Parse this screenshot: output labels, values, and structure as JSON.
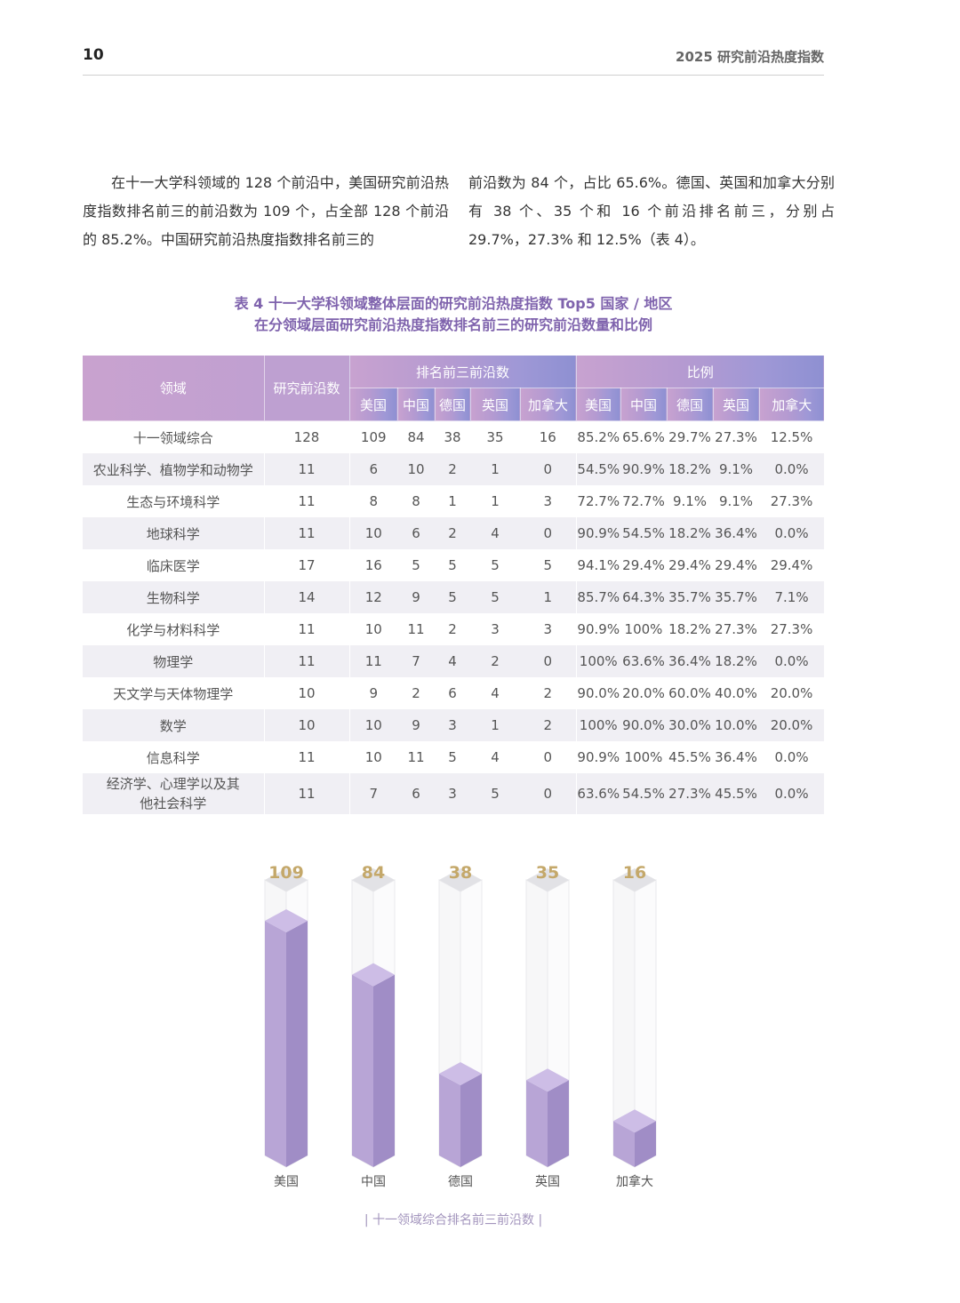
{
  "header": {
    "page_number": "10",
    "running_title": "2025 研究前沿热度指数"
  },
  "paragraph": {
    "left": "在十一大学科领域的 128 个前沿中，美国研究前沿热度指数排名前三的前沿数为 109 个，占全部 128 个前沿的 85.2%。中国研究前沿热度指数排名前三的",
    "right": "前沿数为 84 个，占比 65.6%。德国、英国和加拿大分别有 38 个、35 个和 16 个前沿排名前三，分别占 29.7%，27.3% 和 12.5%（表 4）。"
  },
  "table": {
    "caption_line1": "表 4 十一大学科领域整体层面的研究前沿热度指数 Top5 国家 / 地区",
    "caption_line2": "在分领域层面研究前沿热度指数排名前三的研究前沿数量和比例",
    "headers": {
      "field": "领域",
      "total": "研究前沿数",
      "top3_group": "排名前三前沿数",
      "ratio_group": "比例",
      "countries": [
        "美国",
        "中国",
        "德国",
        "英国",
        "加拿大"
      ]
    },
    "rows": [
      {
        "field": "十一领域综合",
        "total": "128",
        "counts": [
          "109",
          "84",
          "38",
          "35",
          "16"
        ],
        "ratios": [
          "85.2%",
          "65.6%",
          "29.7%",
          "27.3%",
          "12.5%"
        ]
      },
      {
        "field": "农业科学、植物学和动物学",
        "total": "11",
        "counts": [
          "6",
          "10",
          "2",
          "1",
          "0"
        ],
        "ratios": [
          "54.5%",
          "90.9%",
          "18.2%",
          "9.1%",
          "0.0%"
        ]
      },
      {
        "field": "生态与环境科学",
        "total": "11",
        "counts": [
          "8",
          "8",
          "1",
          "1",
          "3"
        ],
        "ratios": [
          "72.7%",
          "72.7%",
          "9.1%",
          "9.1%",
          "27.3%"
        ]
      },
      {
        "field": "地球科学",
        "total": "11",
        "counts": [
          "10",
          "6",
          "2",
          "4",
          "0"
        ],
        "ratios": [
          "90.9%",
          "54.5%",
          "18.2%",
          "36.4%",
          "0.0%"
        ]
      },
      {
        "field": "临床医学",
        "total": "17",
        "counts": [
          "16",
          "5",
          "5",
          "5",
          "5"
        ],
        "ratios": [
          "94.1%",
          "29.4%",
          "29.4%",
          "29.4%",
          "29.4%"
        ]
      },
      {
        "field": "生物科学",
        "total": "14",
        "counts": [
          "12",
          "9",
          "5",
          "5",
          "1"
        ],
        "ratios": [
          "85.7%",
          "64.3%",
          "35.7%",
          "35.7%",
          "7.1%"
        ]
      },
      {
        "field": "化学与材料科学",
        "total": "11",
        "counts": [
          "10",
          "11",
          "2",
          "3",
          "3"
        ],
        "ratios": [
          "90.9%",
          "100%",
          "18.2%",
          "27.3%",
          "27.3%"
        ]
      },
      {
        "field": "物理学",
        "total": "11",
        "counts": [
          "11",
          "7",
          "4",
          "2",
          "0"
        ],
        "ratios": [
          "100%",
          "63.6%",
          "36.4%",
          "18.2%",
          "0.0%"
        ]
      },
      {
        "field": "天文学与天体物理学",
        "total": "10",
        "counts": [
          "9",
          "2",
          "6",
          "4",
          "2"
        ],
        "ratios": [
          "90.0%",
          "20.0%",
          "60.0%",
          "40.0%",
          "20.0%"
        ]
      },
      {
        "field": "数学",
        "total": "10",
        "counts": [
          "10",
          "9",
          "3",
          "1",
          "2"
        ],
        "ratios": [
          "100%",
          "90.0%",
          "30.0%",
          "10.0%",
          "20.0%"
        ]
      },
      {
        "field": "信息科学",
        "total": "11",
        "counts": [
          "10",
          "11",
          "5",
          "4",
          "0"
        ],
        "ratios": [
          "90.9%",
          "100%",
          "45.5%",
          "36.4%",
          "0.0%"
        ]
      },
      {
        "field": "经济学、心理学以及其他社会科学",
        "total": "11",
        "counts": [
          "7",
          "6",
          "3",
          "5",
          "0"
        ],
        "ratios": [
          "63.6%",
          "54.5%",
          "27.3%",
          "45.5%",
          "0.0%"
        ]
      }
    ]
  },
  "chart_data": {
    "type": "bar",
    "title": "十一领域综合排名前三前沿数",
    "categories": [
      "美国",
      "中国",
      "德国",
      "英国",
      "加拿大"
    ],
    "values": [
      109,
      84,
      38,
      35,
      16
    ],
    "ylim": [
      0,
      128
    ],
    "colors": {
      "bar_front": "#b8a5d6",
      "bar_side": "#a08dc6",
      "bar_top": "#cdbde6",
      "value_label": "#c4a86a"
    }
  }
}
